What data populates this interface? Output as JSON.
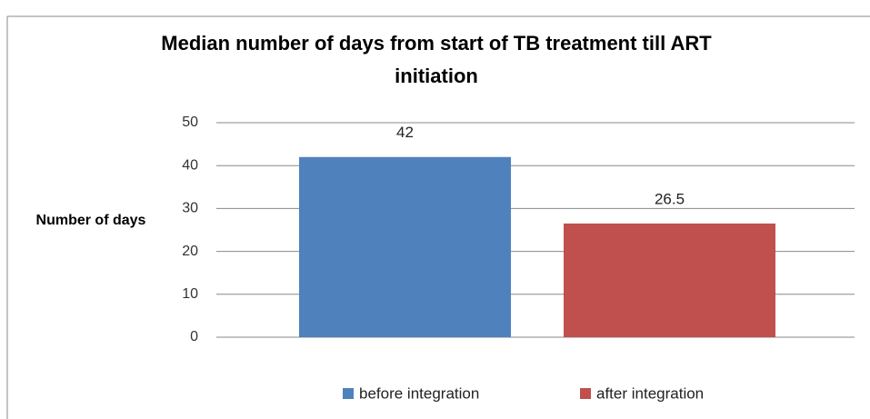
{
  "chart_data": {
    "type": "bar",
    "title": "Median number of days from start of TB treatment till ART initiation",
    "y_label": "Number of days",
    "categories": [
      null
    ],
    "series": [
      {
        "name": "before integration",
        "color": "#4f81bd",
        "values": [
          42
        ]
      },
      {
        "name": "after integration",
        "color": "#c0504d",
        "values": [
          26.5
        ]
      }
    ],
    "ylim": [
      0,
      50
    ],
    "yticks": [
      0,
      10,
      20,
      30,
      40,
      50
    ],
    "grid": true,
    "legend": "bottom"
  }
}
